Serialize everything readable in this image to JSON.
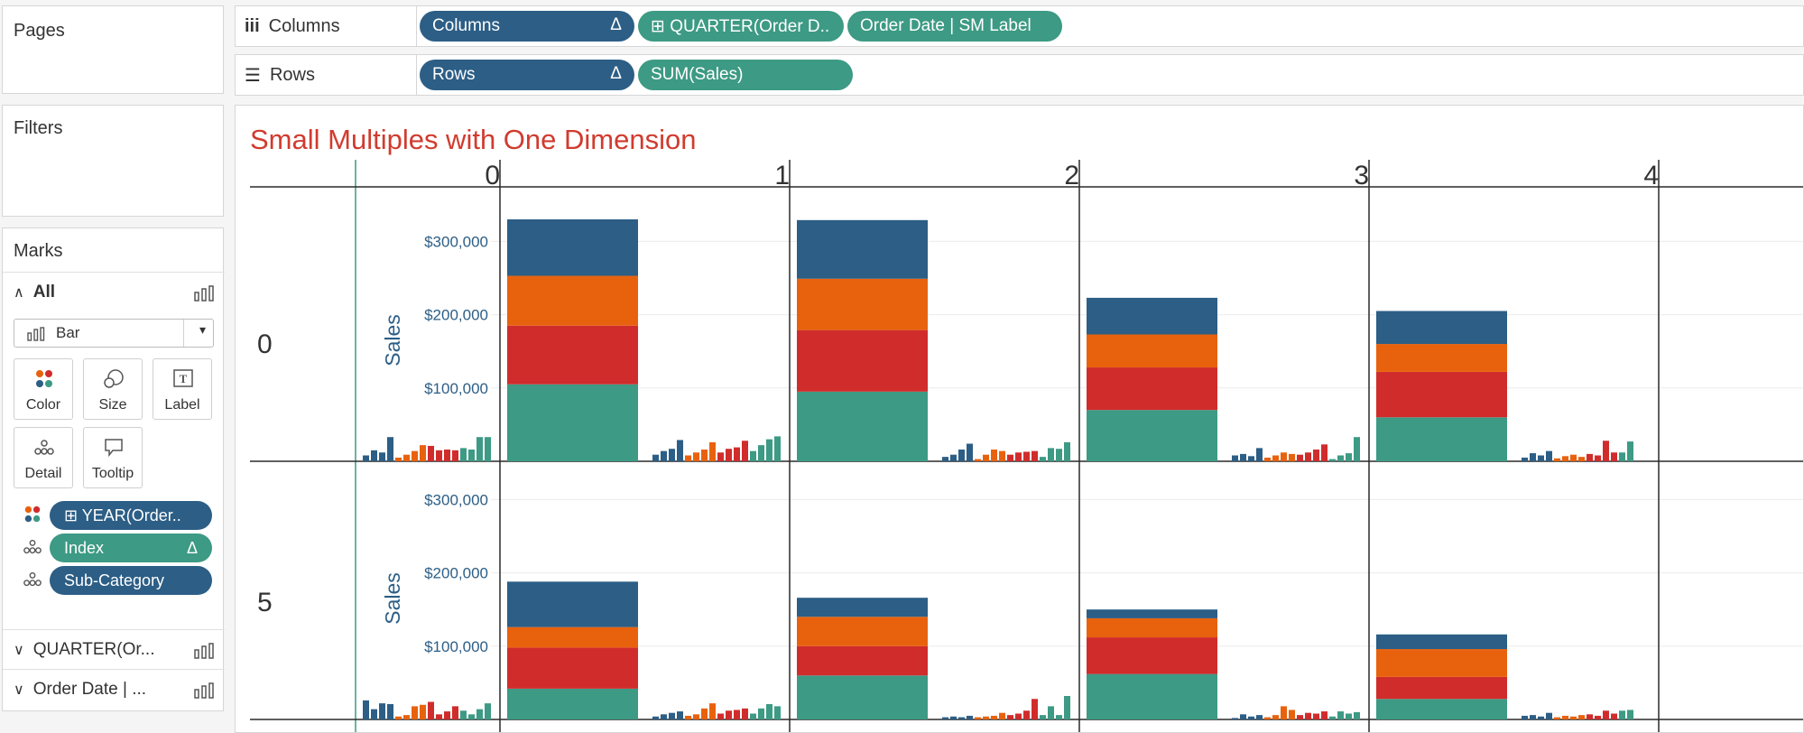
{
  "sidebar": {
    "pages_title": "Pages",
    "filters_title": "Filters",
    "marks": {
      "title": "Marks",
      "all_label": "All",
      "mark_type": "Bar",
      "buttons": [
        {
          "label": "Color",
          "icon": "color-icon"
        },
        {
          "label": "Size",
          "icon": "size-icon"
        },
        {
          "label": "Label",
          "icon": "label-icon"
        },
        {
          "label": "Detail",
          "icon": "detail-icon"
        },
        {
          "label": "Tooltip",
          "icon": "tooltip-icon"
        }
      ],
      "fields": [
        {
          "label": "⊞ YEAR(Order..",
          "icon": "color-icon",
          "style": "blue"
        },
        {
          "label": "Index",
          "icon": "detail-icon",
          "style": "green",
          "delta": "Δ"
        },
        {
          "label": "Sub-Category",
          "icon": "detail-icon",
          "style": "blue"
        }
      ],
      "sections": [
        {
          "label": "QUARTER(Or..."
        },
        {
          "label": "Order Date | ..."
        }
      ]
    }
  },
  "shelves": {
    "columns": {
      "label": "Columns",
      "pills": [
        {
          "label": "Columns",
          "delta": "Δ",
          "style": "blue"
        },
        {
          "label": "⊞ QUARTER(Order D..",
          "style": "green"
        },
        {
          "label": "Order Date | SM Label",
          "style": "green"
        }
      ]
    },
    "rows": {
      "label": "Rows",
      "pills": [
        {
          "label": "Rows",
          "delta": "Δ",
          "style": "blue"
        },
        {
          "label": "SUM(Sales)",
          "style": "green"
        }
      ]
    }
  },
  "view": {
    "title": "Small Multiples with One Dimension"
  },
  "colors": {
    "blue": "#2c5e86",
    "orange": "#e8620e",
    "red": "#d12c2c",
    "teal": "#3d9a84",
    "title": "#d13b2e"
  },
  "chart_data": {
    "type": "bar",
    "title": "Small Multiples with One Dimension",
    "column_headers": [
      "0",
      "1",
      "2",
      "3",
      "4"
    ],
    "row_headers": [
      "0",
      "5"
    ],
    "ylabel": "Sales",
    "ylim": [
      0,
      330000
    ],
    "yticks": [
      {
        "value": 100000,
        "label": "$100,000"
      },
      {
        "value": 200000,
        "label": "$200,000"
      },
      {
        "value": 300000,
        "label": "$300,000"
      }
    ],
    "series_colors": [
      "#3d9a84",
      "#d12c2c",
      "#e8620e",
      "#2c5e86"
    ],
    "panels": [
      {
        "row": 0,
        "col": 0,
        "stack": [
          105000,
          80000,
          68000,
          77000
        ],
        "small": [
          8000,
          15000,
          12000,
          33000,
          5000,
          9000,
          14000,
          22000,
          21000,
          15000,
          16000,
          15000,
          18000,
          16000,
          33000,
          33000
        ]
      },
      {
        "row": 0,
        "col": 1,
        "stack": [
          95000,
          84000,
          70000,
          80000
        ],
        "small": [
          9000,
          14000,
          17000,
          29000,
          8000,
          12000,
          16000,
          26000,
          12000,
          17000,
          19000,
          28000,
          14000,
          22000,
          30000,
          34000
        ]
      },
      {
        "row": 0,
        "col": 2,
        "stack": [
          70000,
          58000,
          45000,
          50000
        ],
        "small": [
          6000,
          9000,
          16000,
          24000,
          3000,
          9000,
          16000,
          14000,
          9000,
          12000,
          13000,
          14000,
          6000,
          18000,
          17000,
          26000
        ]
      },
      {
        "row": 0,
        "col": 3,
        "stack": [
          60000,
          62000,
          38000,
          45000
        ],
        "small": [
          8000,
          10000,
          7000,
          18000,
          5000,
          8000,
          12000,
          10000,
          9000,
          12000,
          16000,
          23000,
          3000,
          8000,
          11000,
          33000
        ]
      },
      {
        "row": 0,
        "col": 4,
        "stack": [],
        "small": [
          5000,
          11000,
          8000,
          14000,
          4000,
          7000,
          9000,
          6000,
          10000,
          8000,
          28000,
          12000,
          12000,
          27000,
          0,
          0
        ]
      },
      {
        "row": 1,
        "col": 0,
        "stack": [
          42000,
          56000,
          28000,
          62000
        ],
        "small": [
          26000,
          14000,
          22000,
          21000,
          4000,
          6000,
          18000,
          20000,
          24000,
          7000,
          11000,
          18000,
          12000,
          7000,
          14000,
          22000
        ]
      },
      {
        "row": 1,
        "col": 1,
        "stack": [
          60000,
          40000,
          40000,
          26000
        ],
        "small": [
          4000,
          7000,
          9000,
          11000,
          5000,
          7000,
          15000,
          22000,
          8000,
          12000,
          13000,
          15000,
          8000,
          15000,
          21000,
          18000
        ]
      },
      {
        "row": 1,
        "col": 2,
        "stack": [
          62000,
          50000,
          26000,
          12000
        ],
        "small": [
          3000,
          4000,
          3000,
          5000,
          3000,
          4000,
          5000,
          9000,
          6000,
          8000,
          12000,
          28000,
          6000,
          18000,
          6000,
          32000
        ]
      },
      {
        "row": 1,
        "col": 3,
        "stack": [
          28000,
          30000,
          38000,
          20000
        ],
        "small": [
          2000,
          7000,
          4000,
          6000,
          3000,
          6000,
          18000,
          13000,
          6000,
          9000,
          8000,
          11000,
          4000,
          11000,
          8000,
          10000
        ]
      },
      {
        "row": 1,
        "col": 4,
        "stack": [],
        "small": [
          5000,
          6000,
          4000,
          9000,
          3000,
          5000,
          4000,
          6000,
          7000,
          5000,
          12000,
          8000,
          12000,
          13000,
          0,
          0
        ]
      }
    ]
  }
}
